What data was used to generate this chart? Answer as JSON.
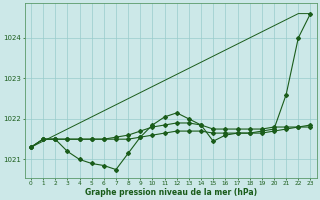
{
  "title": "Graphe pression niveau de la mer (hPa)",
  "bg_color": "#cce8e8",
  "grid_color": "#99cccc",
  "line_color": "#1a5c1a",
  "x_min": -0.5,
  "x_max": 23.5,
  "y_min": 1020.55,
  "y_max": 1024.85,
  "y_ticks": [
    1021,
    1022,
    1023,
    1024
  ],
  "x_ticks": [
    0,
    1,
    2,
    3,
    4,
    5,
    6,
    7,
    8,
    9,
    10,
    11,
    12,
    13,
    14,
    15,
    16,
    17,
    18,
    19,
    20,
    21,
    22,
    23
  ],
  "series_trend": [
    1021.3,
    1021.45,
    1021.6,
    1021.75,
    1021.9,
    1022.05,
    1022.2,
    1022.35,
    1022.5,
    1022.65,
    1022.8,
    1022.95,
    1023.1,
    1023.25,
    1023.4,
    1023.55,
    1023.7,
    1023.85,
    1024.0,
    1024.15,
    1024.3,
    1024.45,
    1024.6,
    1024.6
  ],
  "series_jagged": [
    1021.3,
    1021.5,
    1021.5,
    1021.2,
    1021.0,
    1020.9,
    1020.85,
    1020.75,
    1021.15,
    1021.55,
    1021.85,
    1022.05,
    1022.15,
    1022.0,
    1021.85,
    1021.45,
    1021.6,
    1021.65,
    1021.65,
    1021.7,
    1021.75,
    1022.6,
    1024.0,
    1024.6
  ],
  "series_smooth1": [
    1021.3,
    1021.5,
    1021.5,
    1021.5,
    1021.5,
    1021.5,
    1021.5,
    1021.5,
    1021.5,
    1021.55,
    1021.6,
    1021.65,
    1021.7,
    1021.7,
    1021.7,
    1021.65,
    1021.65,
    1021.65,
    1021.65,
    1021.65,
    1021.7,
    1021.75,
    1021.8,
    1021.85
  ],
  "series_smooth2": [
    1021.3,
    1021.5,
    1021.5,
    1021.5,
    1021.5,
    1021.5,
    1021.5,
    1021.55,
    1021.6,
    1021.7,
    1021.8,
    1021.85,
    1021.9,
    1021.9,
    1021.85,
    1021.75,
    1021.75,
    1021.75,
    1021.75,
    1021.75,
    1021.8,
    1021.8,
    1021.8,
    1021.8
  ],
  "figwidth": 3.2,
  "figheight": 2.0,
  "dpi": 100
}
